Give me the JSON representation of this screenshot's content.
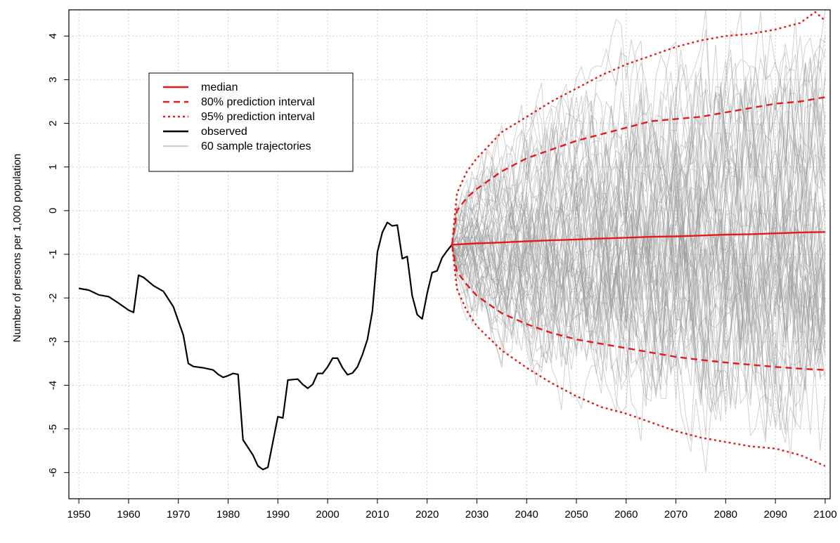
{
  "chart_data": {
    "type": "line",
    "title": "",
    "xlabel": "",
    "ylabel": "Number of persons per 1,000 population",
    "xlim": [
      1948,
      2101
    ],
    "ylim": [
      -6.6,
      4.6
    ],
    "xticks": [
      1950,
      1960,
      1970,
      1980,
      1990,
      2000,
      2010,
      2020,
      2030,
      2040,
      2050,
      2060,
      2070,
      2080,
      2090,
      2100
    ],
    "yticks": [
      -6,
      -5,
      -4,
      -3,
      -2,
      -1,
      0,
      1,
      2,
      3,
      4
    ],
    "grid": true,
    "legend_position": "top-left",
    "legend": [
      {
        "label": "median",
        "color": "#e41a1c",
        "style": "solid"
      },
      {
        "label": "80% prediction interval",
        "color": "#e41a1c",
        "style": "dashed"
      },
      {
        "label": "95% prediction interval",
        "color": "#e41a1c",
        "style": "dotted"
      },
      {
        "label": "observed",
        "color": "#000000",
        "style": "solid"
      },
      {
        "label": "60 sample trajectories",
        "color": "#bdbdbd",
        "style": "solid"
      }
    ],
    "sample_trajectory_count": 60,
    "series": [
      {
        "name": "observed",
        "color": "#000000",
        "points": [
          [
            1950,
            -1.78
          ],
          [
            1952,
            -1.82
          ],
          [
            1954,
            -1.93
          ],
          [
            1956,
            -1.97
          ],
          [
            1958,
            -2.12
          ],
          [
            1960,
            -2.28
          ],
          [
            1961,
            -2.33
          ],
          [
            1962,
            -1.48
          ],
          [
            1963,
            -1.53
          ],
          [
            1965,
            -1.72
          ],
          [
            1967,
            -1.85
          ],
          [
            1969,
            -2.2
          ],
          [
            1971,
            -2.85
          ],
          [
            1972,
            -3.5
          ],
          [
            1973,
            -3.57
          ],
          [
            1975,
            -3.6
          ],
          [
            1977,
            -3.65
          ],
          [
            1978,
            -3.75
          ],
          [
            1979,
            -3.82
          ],
          [
            1980,
            -3.78
          ],
          [
            1981,
            -3.73
          ],
          [
            1982,
            -3.75
          ],
          [
            1983,
            -5.25
          ],
          [
            1985,
            -5.6
          ],
          [
            1986,
            -5.85
          ],
          [
            1987,
            -5.93
          ],
          [
            1988,
            -5.88
          ],
          [
            1989,
            -5.3
          ],
          [
            1990,
            -4.72
          ],
          [
            1991,
            -4.75
          ],
          [
            1992,
            -3.88
          ],
          [
            1994,
            -3.86
          ],
          [
            1995,
            -3.98
          ],
          [
            1996,
            -4.07
          ],
          [
            1997,
            -3.98
          ],
          [
            1998,
            -3.73
          ],
          [
            1999,
            -3.73
          ],
          [
            2000,
            -3.58
          ],
          [
            2001,
            -3.38
          ],
          [
            2002,
            -3.38
          ],
          [
            2003,
            -3.6
          ],
          [
            2004,
            -3.76
          ],
          [
            2005,
            -3.72
          ],
          [
            2006,
            -3.58
          ],
          [
            2007,
            -3.3
          ],
          [
            2008,
            -2.95
          ],
          [
            2009,
            -2.3
          ],
          [
            2010,
            -0.95
          ],
          [
            2011,
            -0.5
          ],
          [
            2012,
            -0.27
          ],
          [
            2013,
            -0.35
          ],
          [
            2014,
            -0.33
          ],
          [
            2015,
            -1.1
          ],
          [
            2016,
            -1.05
          ],
          [
            2017,
            -1.95
          ],
          [
            2018,
            -2.38
          ],
          [
            2019,
            -2.48
          ],
          [
            2020,
            -1.9
          ],
          [
            2021,
            -1.42
          ],
          [
            2022,
            -1.38
          ],
          [
            2023,
            -1.08
          ],
          [
            2024,
            -0.92
          ],
          [
            2025,
            -0.78
          ]
        ]
      },
      {
        "name": "median",
        "color": "#e41a1c",
        "points": [
          [
            2025,
            -0.78
          ],
          [
            2030,
            -0.75
          ],
          [
            2035,
            -0.73
          ],
          [
            2040,
            -0.7
          ],
          [
            2045,
            -0.68
          ],
          [
            2050,
            -0.66
          ],
          [
            2055,
            -0.64
          ],
          [
            2060,
            -0.62
          ],
          [
            2065,
            -0.6
          ],
          [
            2070,
            -0.59
          ],
          [
            2075,
            -0.57
          ],
          [
            2080,
            -0.55
          ],
          [
            2085,
            -0.54
          ],
          [
            2090,
            -0.52
          ],
          [
            2095,
            -0.5
          ],
          [
            2100,
            -0.49
          ]
        ]
      },
      {
        "name": "80% prediction interval (upper)",
        "color": "#e41a1c",
        "points": [
          [
            2025,
            -0.78
          ],
          [
            2026,
            0.0
          ],
          [
            2028,
            0.3
          ],
          [
            2030,
            0.5
          ],
          [
            2035,
            0.9
          ],
          [
            2040,
            1.2
          ],
          [
            2045,
            1.4
          ],
          [
            2050,
            1.6
          ],
          [
            2055,
            1.75
          ],
          [
            2060,
            1.9
          ],
          [
            2065,
            2.05
          ],
          [
            2070,
            2.1
          ],
          [
            2075,
            2.15
          ],
          [
            2080,
            2.25
          ],
          [
            2085,
            2.35
          ],
          [
            2090,
            2.45
          ],
          [
            2095,
            2.5
          ],
          [
            2100,
            2.6
          ]
        ]
      },
      {
        "name": "80% prediction interval (lower)",
        "color": "#e41a1c",
        "points": [
          [
            2025,
            -0.78
          ],
          [
            2026,
            -1.4
          ],
          [
            2028,
            -1.7
          ],
          [
            2030,
            -1.95
          ],
          [
            2035,
            -2.35
          ],
          [
            2040,
            -2.6
          ],
          [
            2045,
            -2.8
          ],
          [
            2050,
            -2.95
          ],
          [
            2055,
            -3.05
          ],
          [
            2060,
            -3.15
          ],
          [
            2065,
            -3.25
          ],
          [
            2070,
            -3.35
          ],
          [
            2075,
            -3.42
          ],
          [
            2080,
            -3.48
          ],
          [
            2085,
            -3.53
          ],
          [
            2090,
            -3.58
          ],
          [
            2095,
            -3.62
          ],
          [
            2100,
            -3.65
          ]
        ]
      },
      {
        "name": "95% prediction interval (upper)",
        "color": "#e41a1c",
        "points": [
          [
            2025,
            -0.78
          ],
          [
            2026,
            0.4
          ],
          [
            2028,
            0.9
          ],
          [
            2030,
            1.2
          ],
          [
            2035,
            1.8
          ],
          [
            2040,
            2.15
          ],
          [
            2045,
            2.5
          ],
          [
            2050,
            2.8
          ],
          [
            2055,
            3.1
          ],
          [
            2060,
            3.35
          ],
          [
            2065,
            3.55
          ],
          [
            2070,
            3.75
          ],
          [
            2075,
            3.9
          ],
          [
            2080,
            4.0
          ],
          [
            2085,
            4.05
          ],
          [
            2090,
            4.15
          ],
          [
            2095,
            4.3
          ],
          [
            2098,
            4.55
          ],
          [
            2100,
            4.35
          ]
        ]
      },
      {
        "name": "95% prediction interval (lower)",
        "color": "#e41a1c",
        "points": [
          [
            2025,
            -0.78
          ],
          [
            2026,
            -1.8
          ],
          [
            2028,
            -2.3
          ],
          [
            2030,
            -2.65
          ],
          [
            2035,
            -3.2
          ],
          [
            2040,
            -3.6
          ],
          [
            2045,
            -3.95
          ],
          [
            2050,
            -4.25
          ],
          [
            2055,
            -4.5
          ],
          [
            2060,
            -4.65
          ],
          [
            2065,
            -4.85
          ],
          [
            2070,
            -5.05
          ],
          [
            2075,
            -5.2
          ],
          [
            2080,
            -5.3
          ],
          [
            2085,
            -5.4
          ],
          [
            2090,
            -5.45
          ],
          [
            2095,
            -5.6
          ],
          [
            2100,
            -5.85
          ]
        ]
      }
    ]
  }
}
